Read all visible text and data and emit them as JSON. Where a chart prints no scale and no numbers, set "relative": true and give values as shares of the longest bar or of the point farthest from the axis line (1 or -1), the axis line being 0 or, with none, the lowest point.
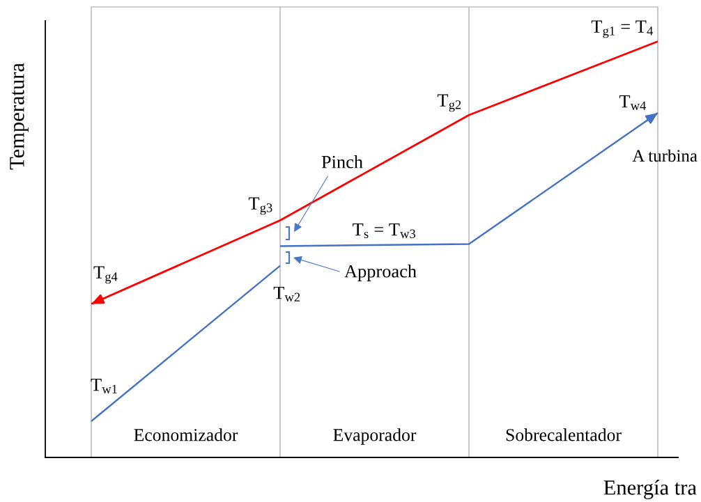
{
  "chart_data": {
    "type": "line",
    "relative": true,
    "xlabel": "Energía tra",
    "ylabel": "Temperatura",
    "categories": [
      null,
      null,
      null,
      null
    ],
    "series": [
      {
        "color": "#ff0000",
        "values": [
          0.369,
          0.57,
          0.823,
          1.0
        ]
      },
      {
        "color": "#4472c4",
        "values": [
          0.087,
          0.461,
          null,
          null
        ]
      },
      {
        "color": "#4472c4",
        "values": [
          null,
          0.508,
          0.513,
          0.828
        ]
      }
    ],
    "grid": "x",
    "annotations": [
      "T$_{g1}$ = T$_{4}$",
      "T$_{g2}$",
      "T$_{g3}$",
      "T$_{g4}$",
      "T$_{w1}$",
      "T$_{w2}$",
      "T$_{s}$ = T$_{w3}$",
      "T$_{w4}$",
      "A turbina",
      "Pinch",
      "Approach",
      "Economizador",
      "Evaporador",
      "Sobrecalentador"
    ]
  }
}
